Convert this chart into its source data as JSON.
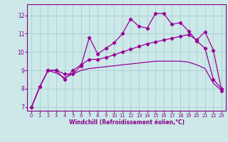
{
  "xlabel": "Windchill (Refroidissement éolien,°C)",
  "bg_color": "#cce8e8",
  "grid_color": "#aad4d4",
  "line_color": "#990099",
  "xlim": [
    -0.5,
    23.5
  ],
  "ylim": [
    6.8,
    12.6
  ],
  "yticks": [
    7,
    8,
    9,
    10,
    11,
    12
  ],
  "xticks": [
    0,
    1,
    2,
    3,
    4,
    5,
    6,
    7,
    8,
    9,
    10,
    11,
    12,
    13,
    14,
    15,
    16,
    17,
    18,
    19,
    20,
    21,
    22,
    23
  ],
  "series1_x": [
    0,
    1,
    2,
    3,
    4,
    5,
    6,
    7,
    8,
    9,
    10,
    11,
    12,
    13,
    14,
    15,
    16,
    17,
    18,
    19,
    20,
    21,
    22,
    23
  ],
  "series1_y": [
    7.0,
    8.1,
    9.0,
    9.0,
    8.8,
    8.8,
    9.25,
    10.8,
    9.9,
    10.2,
    10.5,
    11.0,
    11.8,
    11.4,
    11.3,
    12.1,
    12.1,
    11.5,
    11.6,
    11.15,
    10.6,
    10.2,
    8.5,
    8.0
  ],
  "series2_x": [
    0,
    1,
    2,
    3,
    4,
    5,
    6,
    7,
    8,
    9,
    10,
    11,
    12,
    13,
    14,
    15,
    16,
    17,
    18,
    19,
    20,
    21,
    22,
    23
  ],
  "series2_y": [
    7.0,
    8.1,
    9.0,
    9.0,
    8.5,
    9.0,
    9.3,
    9.6,
    9.6,
    9.7,
    9.85,
    10.0,
    10.15,
    10.3,
    10.45,
    10.55,
    10.65,
    10.75,
    10.85,
    10.95,
    10.65,
    11.1,
    10.1,
    7.9
  ],
  "series3_x": [
    0,
    1,
    2,
    3,
    4,
    5,
    6,
    7,
    8,
    9,
    10,
    11,
    12,
    13,
    14,
    15,
    16,
    17,
    18,
    19,
    20,
    21,
    22,
    23
  ],
  "series3_y": [
    7.0,
    8.1,
    9.0,
    8.85,
    8.6,
    8.8,
    9.0,
    9.1,
    9.15,
    9.2,
    9.25,
    9.3,
    9.35,
    9.4,
    9.45,
    9.5,
    9.5,
    9.5,
    9.5,
    9.45,
    9.3,
    9.1,
    8.3,
    7.9
  ]
}
